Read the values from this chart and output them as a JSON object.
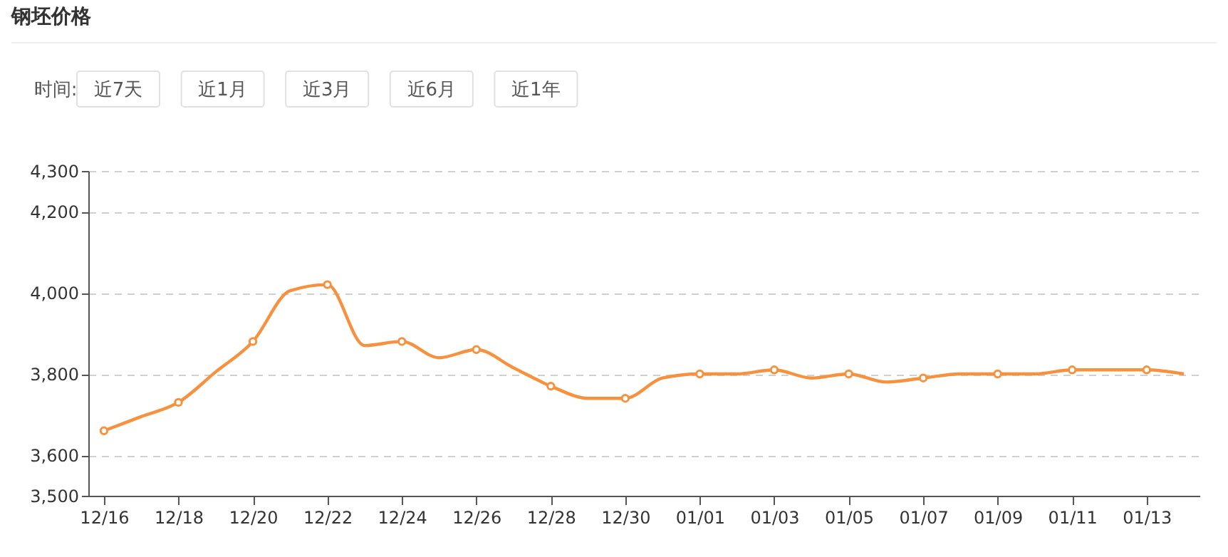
{
  "chart_data": {
    "type": "line",
    "title": "钢坯价格",
    "annotations": [
      "时间:",
      "近7天",
      "近1月",
      "近3月",
      "近6月",
      "近1年"
    ],
    "categories": [
      "12/16",
      null,
      "12/18",
      null,
      "12/20",
      null,
      "12/22",
      null,
      "12/24",
      null,
      "12/26",
      null,
      "12/28",
      null,
      "12/30",
      null,
      "01/01",
      null,
      "01/03",
      null,
      "01/05",
      null,
      "01/07",
      null,
      "01/09",
      null,
      "01/11",
      null,
      "01/13",
      null
    ],
    "series": [
      {
        "color": "#f7913d",
        "values": [
          3660,
          3695,
          3730,
          3805,
          3880,
          4005,
          4020,
          3870,
          3880,
          3840,
          3860,
          3815,
          3770,
          3740,
          3740,
          3790,
          3800,
          3800,
          3810,
          3790,
          3800,
          3780,
          3790,
          3800,
          3800,
          3800,
          3810,
          3810,
          3810,
          3800
        ]
      }
    ],
    "ylim": [
      3500,
      4300
    ],
    "yticks": [
      {
        "value": 3500,
        "label": "3,500"
      },
      {
        "value": 3600,
        "label": "3,600"
      },
      {
        "value": 3800,
        "label": "3,800"
      },
      {
        "value": 4000,
        "label": "4,000"
      },
      {
        "value": 4200,
        "label": "4,200"
      },
      {
        "value": 4300,
        "label": "4,300"
      }
    ],
    "grid": "y",
    "marker": "circle"
  }
}
